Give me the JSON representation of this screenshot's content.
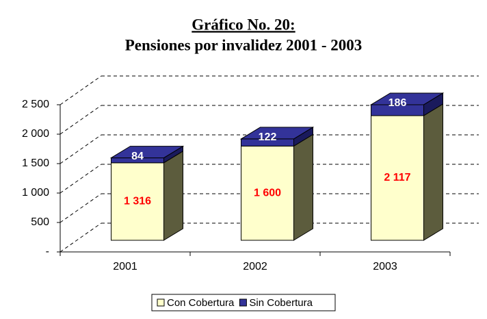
{
  "chart_data": {
    "type": "bar3d-stacked",
    "title": "Gráfico No. 20:",
    "subtitle": "Pensiones por invalidez 2001 - 2003",
    "categories": [
      "2001",
      "2002",
      "2003"
    ],
    "series": [
      {
        "name": "Con Cobertura",
        "color": "#ffffcc",
        "side_color": "#5c5c3d",
        "label_color": "#ff0000",
        "values": [
          1316,
          1600,
          2117
        ],
        "value_labels": [
          "1 316",
          "1 600",
          "2 117"
        ]
      },
      {
        "name": "Sin Cobertura",
        "color": "#333399",
        "side_color": "#1a1a5c",
        "label_color": "#ffffff",
        "values": [
          84,
          122,
          186
        ]
      }
    ],
    "ylim": [
      0,
      2500
    ],
    "yticks": [
      {
        "value": 0,
        "label": "-"
      },
      500,
      {
        "value": 1000,
        "label": "1 000"
      },
      {
        "value": 1500,
        "label": "1 500"
      },
      {
        "value": 2000,
        "label": "2 000"
      },
      {
        "value": 2500,
        "label": "2 500"
      }
    ],
    "grid": true,
    "legend": "bottom"
  }
}
